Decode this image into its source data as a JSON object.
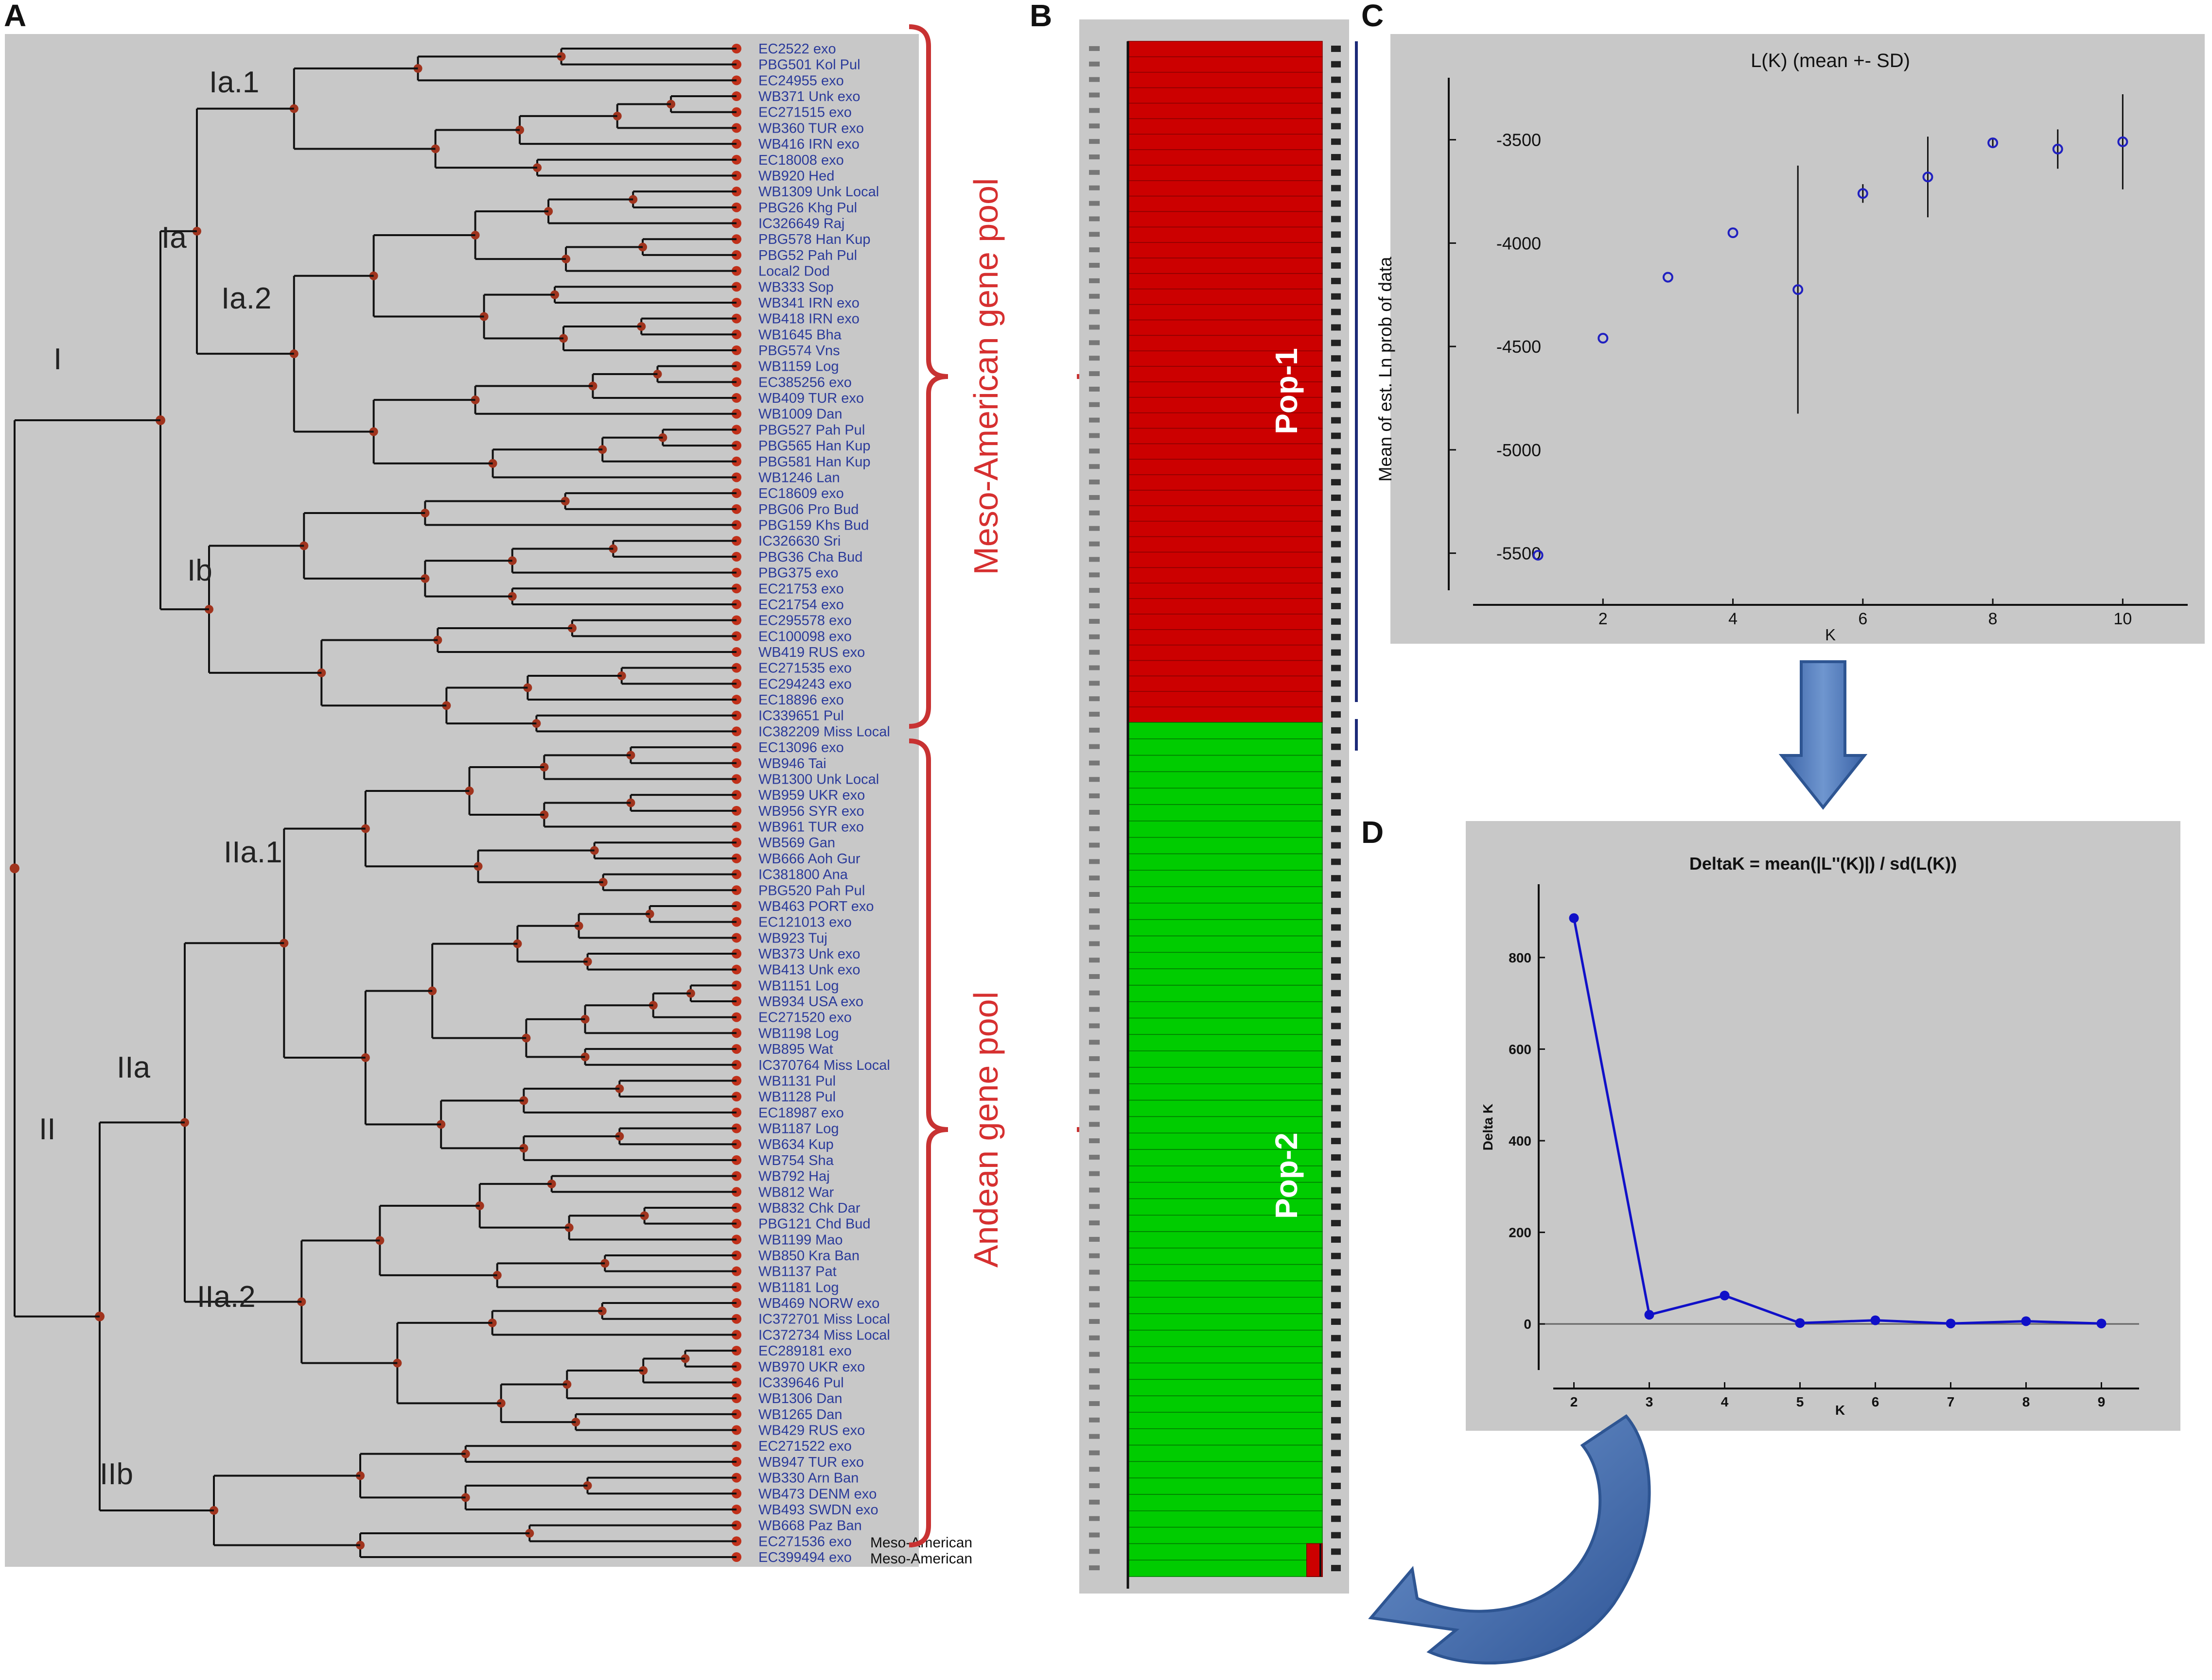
{
  "panels": {
    "a": {
      "letter": "A"
    },
    "b": {
      "letter": "B"
    },
    "c": {
      "letter": "C"
    },
    "d": {
      "letter": "D"
    }
  },
  "dendrogram": {
    "clade_labels": [
      "I",
      "Ia",
      "Ia.1",
      "Ia.2",
      "Ib",
      "II",
      "IIa",
      "IIa.1",
      "IIa.2",
      "IIb"
    ],
    "leaves": [
      "EC2522 exo",
      "PBG501 Kol Pul",
      "EC24955 exo",
      "WB371 Unk exo",
      "EC271515 exo",
      "WB360 TUR exo",
      "WB416 IRN exo",
      "EC18008 exo",
      "WB920 Hed",
      "WB1309 Unk Local",
      "PBG26 Khg Pul",
      "IC326649 Raj",
      "PBG578 Han Kup",
      "PBG52 Pah Pul",
      "Local2 Dod",
      "WB333 Sop",
      "WB341 IRN exo",
      "WB418 IRN exo",
      "WB1645 Bha",
      "PBG574 Vns",
      "WB1159 Log",
      "EC385256 exo",
      "WB409 TUR exo",
      "WB1009 Dan",
      "PBG527 Pah Pul",
      "PBG565 Han Kup",
      "PBG581 Han Kup",
      "WB1246 Lan",
      "EC18609 exo",
      "PBG06 Pro Bud",
      "PBG159 Khs Bud",
      "IC326630 Sri",
      "PBG36 Cha Bud",
      "PBG375 exo",
      "EC21753 exo",
      "EC21754 exo",
      "EC295578 exo",
      "EC100098 exo",
      "WB419 RUS exo",
      "EC271535 exo",
      "EC294243 exo",
      "EC18896 exo",
      "IC339651 Pul",
      "IC382209 Miss Local",
      "EC13096 exo",
      "WB946 Tai",
      "WB1300 Unk Local",
      "WB959 UKR exo",
      "WB956 SYR exo",
      "WB961 TUR exo",
      "WB569 Gan",
      "WB666 Aoh Gur",
      "IC381800 Ana",
      "PBG520 Pah Pul",
      "WB463 PORT exo",
      "EC121013 exo",
      "WB923 Tuj",
      "WB373 Unk exo",
      "WB413 Unk exo",
      "WB1151 Log",
      "WB934 USA exo",
      "EC271520 exo",
      "WB1198 Log",
      "WB895 Wat",
      "IC370764 Miss Local",
      "WB1131 Pul",
      "WB1128 Pul",
      "EC18987 exo",
      "WB1187 Log",
      "WB634 Kup",
      "WB754 Sha",
      "WB792 Haj",
      "WB812 War",
      "WB832 Chk Dar",
      "PBG121 Chd Bud",
      "WB1199 Mao",
      "WB850 Kra Ban",
      "WB1137 Pat",
      "WB1181 Log",
      "WB469 NORW exo",
      "IC372701 Miss Local",
      "IC372734 Miss Local",
      "EC289181 exo",
      "WB970 UKR exo",
      "IC339646 Pul",
      "WB1306 Dan",
      "WB1265 Dan",
      "WB429 RUS exo",
      "EC271522 exo",
      "WB947 TUR exo",
      "WB330 Arn Ban",
      "WB473 DENM exo",
      "WB493 SWDN exo",
      "WB668 Paz Ban",
      "EC271536 exo",
      "EC399494 exo"
    ],
    "misclassified_note_1": "Meso-American",
    "misclassified_note_2": "Meso-American",
    "gene_pool_1": "Meso-American gene pool",
    "gene_pool_2": "Andean  gene pool"
  },
  "structure_plot": {
    "pop1_label": "Pop-1",
    "pop2_label": "Pop-2",
    "pop1_color": "#cc0000",
    "pop2_color": "#00cc00",
    "pop1_count": 44,
    "pop2_count": 52
  },
  "chart_data": [
    {
      "type": "scatter",
      "title": "L(K) (mean +- SD)",
      "xlabel": "K",
      "ylabel": "Mean of est. Ln prob of data",
      "x": [
        1,
        2,
        3,
        4,
        5,
        6,
        7,
        8,
        9,
        10
      ],
      "y": [
        -5510,
        -4460,
        -4165,
        -3950,
        -4225,
        -3760,
        -3680,
        -3515,
        -3545,
        -3510
      ],
      "sd": [
        0,
        0,
        0,
        0,
        600,
        45,
        195,
        20,
        95,
        230
      ],
      "xticks": [
        "2",
        "4",
        "6",
        "8",
        "10"
      ],
      "yticks": [
        "-3500",
        "-4000",
        "-4500",
        "-5000",
        "-5500"
      ],
      "xlim": [
        0,
        11
      ],
      "ylim": [
        -5750,
        -3200
      ],
      "color": "#2020c0"
    },
    {
      "type": "line",
      "title": "DeltaK = mean(|L''(K)|) / sd(L(K))",
      "xlabel": "K",
      "ylabel": "Delta K",
      "x": [
        2,
        3,
        4,
        5,
        6,
        7,
        8,
        9
      ],
      "y": [
        886,
        20,
        62,
        2,
        8,
        1,
        6,
        1
      ],
      "xticks": [
        "2",
        "3",
        "4",
        "5",
        "6",
        "7",
        "8",
        "9"
      ],
      "yticks": [
        "0",
        "200",
        "400",
        "600",
        "800"
      ],
      "xlim": [
        1.5,
        9.5
      ],
      "ylim": [
        -90,
        960
      ],
      "color": "#1010c8"
    }
  ],
  "colors": {
    "panel_bg": "#c8c8c8",
    "leaf_text": "#2a3a9a",
    "node": "#a0341e",
    "bracket": "#c83232",
    "arrow": "#4a74b4"
  }
}
